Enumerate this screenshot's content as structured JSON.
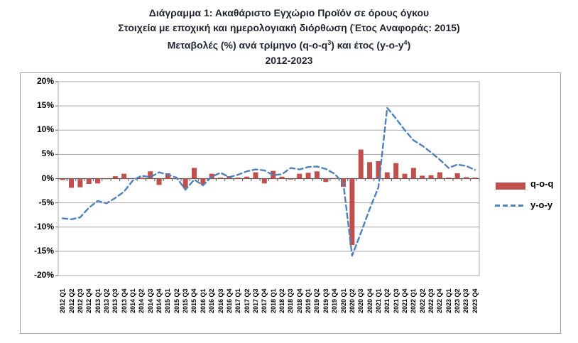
{
  "title": {
    "line1": "Διάγραμμα 1: Ακαθάριστο Εγχώριο Προϊόν σε όρους όγκου",
    "line2": "Στοιχεία με εποχική και ημερολογιακή διόρθωση (Έτος Αναφοράς: 2015)",
    "line3_part1": "Μεταβολές (%) ανά τρίμηνο (q-o-q",
    "line3_sup1": "3",
    "line3_part2": ") και έτος (y-o-y",
    "line3_sup2": "4",
    "line3_part3": ")",
    "line4": "2012-2023"
  },
  "chart_data": {
    "type": "bar+line",
    "categories": [
      "2012 Q1",
      "2012 Q2",
      "2012 Q3",
      "2012 Q4",
      "2013 Q1",
      "2013 Q2",
      "2013 Q3",
      "2013 Q4",
      "2014 Q1",
      "2014 Q2",
      "2014 Q3",
      "2014 Q4",
      "2015 Q1",
      "2015 Q2",
      "2015 Q3",
      "2015 Q4",
      "2016 Q1",
      "2016 Q2",
      "2016 Q3",
      "2016 Q4",
      "2017 Q1",
      "2017 Q2",
      "2017 Q3",
      "2017 Q4",
      "2018 Q1",
      "2018 Q2",
      "2018 Q3",
      "2018 Q4",
      "2019 Q1",
      "2019 Q2",
      "2019 Q3",
      "2019 Q4",
      "2020 Q1",
      "2020 Q2",
      "2020 Q3",
      "2020 Q4",
      "2021 Q1",
      "2021 Q2",
      "2021 Q3",
      "2021 Q4",
      "2022 Q1",
      "2022 Q2",
      "2022 Q3",
      "2022 Q4",
      "2023 Q1",
      "2023 Q2",
      "2023 Q3",
      "2023 Q4"
    ],
    "series": [
      {
        "name": "q-o-q",
        "type": "bar",
        "color": "#C0504D",
        "values": [
          -0.3,
          -1.9,
          -1.8,
          -1.1,
          -1.0,
          -0.1,
          0.5,
          1.0,
          0.1,
          0.2,
          1.5,
          -1.3,
          1.1,
          -0.1,
          -2.0,
          2.2,
          -1.2,
          1.0,
          0.2,
          0.5,
          0.2,
          0.4,
          1.3,
          -1.0,
          1.6,
          0.4,
          -0.2,
          1.0,
          1.2,
          1.5,
          -0.7,
          0.1,
          -1.7,
          -13.7,
          6.0,
          3.4,
          3.6,
          1.3,
          3.2,
          1.0,
          2.2,
          0.6,
          0.7,
          1.3,
          0.2,
          1.1,
          0.3,
          0.2
        ]
      },
      {
        "name": "y-o-y",
        "type": "line",
        "dashed": true,
        "color": "#4F81BD",
        "values": [
          -8.2,
          -8.4,
          -8.0,
          -6.0,
          -4.6,
          -5.1,
          -4.0,
          -2.7,
          -0.4,
          0.6,
          0.3,
          1.3,
          0.8,
          0.2,
          -2.3,
          -0.2,
          -1.4,
          0.4,
          1.2,
          0.3,
          0.8,
          1.5,
          1.9,
          1.7,
          0.7,
          0.9,
          2.2,
          1.9,
          2.4,
          2.5,
          2.0,
          1.0,
          -1.0,
          -15.9,
          -11.2,
          -6.3,
          -1.8,
          14.6,
          12.4,
          10.0,
          7.9,
          6.8,
          5.4,
          3.9,
          2.2,
          2.9,
          2.6,
          1.8
        ]
      }
    ],
    "ylim": [
      -20,
      20
    ],
    "ytick_step": 5,
    "ytick_labels": [
      "20%",
      "15%",
      "10%",
      "5%",
      "0%",
      "-5%",
      "-10%",
      "-15%",
      "-20%"
    ],
    "grid": true,
    "legend_position": "right",
    "xlabel": "",
    "ylabel": ""
  },
  "colors": {
    "bar": "#C0504D",
    "line": "#4F81BD",
    "gridline": "#A8A8A8",
    "zero_axis": "#595959",
    "frame_border": "#A0A0A0",
    "title_text": "#1f2430"
  }
}
